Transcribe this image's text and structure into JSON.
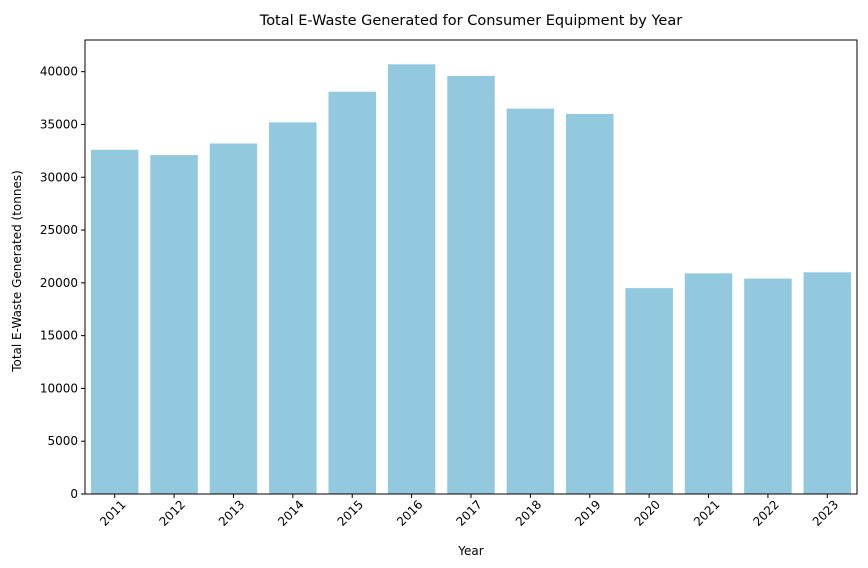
{
  "chart_data": {
    "type": "bar",
    "title": "Total E-Waste Generated for Consumer Equipment by Year",
    "xlabel": "Year",
    "ylabel": "Total E-Waste Generated (tonnes)",
    "categories": [
      "2011",
      "2012",
      "2013",
      "2014",
      "2015",
      "2016",
      "2017",
      "2018",
      "2019",
      "2020",
      "2021",
      "2022",
      "2023"
    ],
    "values": [
      32600,
      32100,
      33200,
      35200,
      38100,
      40700,
      39600,
      36500,
      36000,
      19500,
      20900,
      20400,
      21000
    ],
    "ylim": [
      0,
      43000
    ],
    "yticks": [
      0,
      5000,
      10000,
      15000,
      20000,
      25000,
      30000,
      35000,
      40000
    ],
    "bar_color": "#92c9df",
    "grid": false,
    "legend": "none"
  }
}
